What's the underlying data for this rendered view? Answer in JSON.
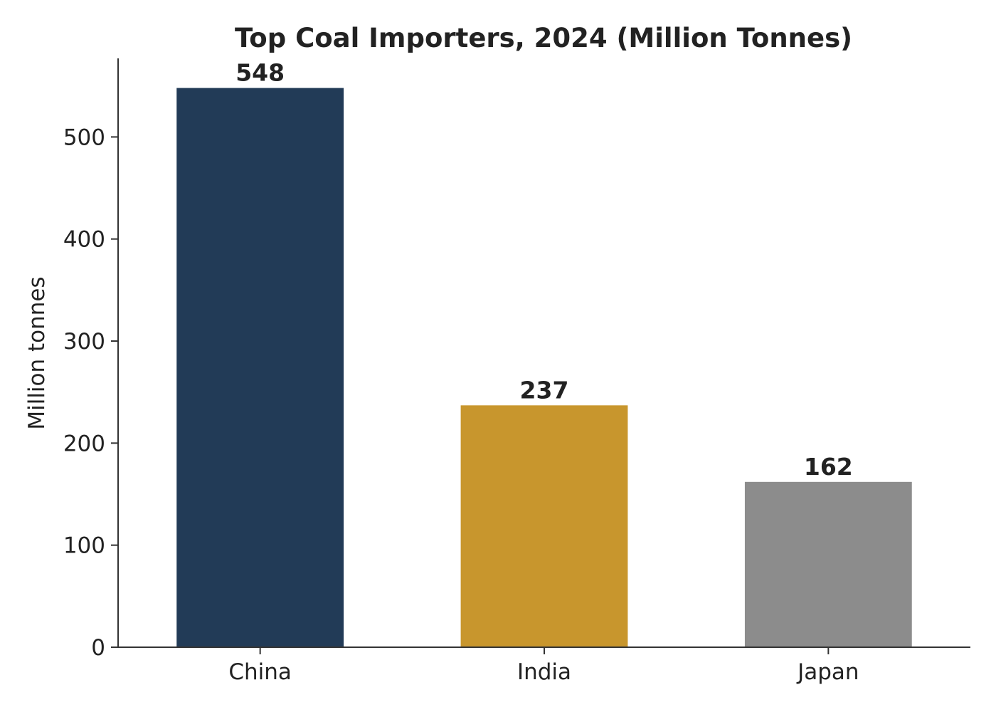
{
  "chart_data": {
    "type": "bar",
    "title": "Top Coal Importers, 2024 (Million Tonnes)",
    "xlabel": "",
    "ylabel": "Million tonnes",
    "categories": [
      "China",
      "India",
      "Japan"
    ],
    "values": [
      548,
      237,
      162
    ],
    "value_labels": [
      "548",
      "237",
      "162"
    ],
    "colors": [
      "#223b57",
      "#c8962d",
      "#8c8c8c"
    ],
    "ylim": [
      0,
      577
    ],
    "yticks": [
      0,
      100,
      200,
      300,
      400,
      500
    ],
    "ytick_labels": [
      "0",
      "100",
      "200",
      "300",
      "400",
      "500"
    ],
    "grid": false,
    "legend": "none"
  }
}
